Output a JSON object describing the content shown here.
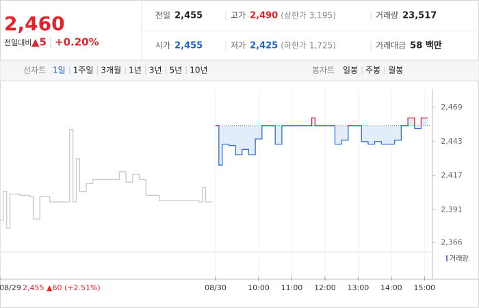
{
  "header": {
    "price": "2,460",
    "change_label": "전일대비",
    "change": "▲5",
    "change_pct": "+0.20%",
    "stats": [
      {
        "label": "전일",
        "value": "2,455",
        "color": "#222"
      },
      {
        "label": "고가",
        "value": "2,490",
        "note": "(상한가 3,195)",
        "color": "#e0242b"
      },
      {
        "label": "거래량",
        "value": "23,517",
        "color": "#222"
      },
      {
        "label": "시가",
        "value": "2,455",
        "color": "#1e62c8"
      },
      {
        "label": "저가",
        "value": "2,425",
        "note": "(하한가 1,725)",
        "color": "#1e62c8"
      },
      {
        "label": "거래대금",
        "value": "58 백만",
        "color": "#222"
      }
    ]
  },
  "tabs": {
    "line_label": "선차트",
    "periods": [
      "1일",
      "1주일",
      "3개월",
      "1년",
      "3년",
      "5년",
      "10년"
    ],
    "active": 0,
    "candle_label": "봉차트",
    "candles": [
      "일봉",
      "주봉",
      "월봉"
    ]
  },
  "chart_data": {
    "type": "line",
    "base": 2455,
    "annotation": "2,455 ▲60 (+2.51%)",
    "volume_label": "거래량",
    "xlim": [
      0,
      130
    ],
    "ylim": [
      2360,
      2482
    ],
    "xticks": [
      {
        "value": 0,
        "label": "08/29"
      },
      {
        "value": 65,
        "label": "08/30"
      },
      {
        "value": 78,
        "label": "10:00"
      },
      {
        "value": 88,
        "label": "11:00"
      },
      {
        "value": 98,
        "label": "12:00"
      },
      {
        "value": 108,
        "label": "13:00"
      },
      {
        "value": 118,
        "label": "14:00"
      },
      {
        "value": 128,
        "label": "15:00"
      }
    ],
    "yticks": [
      {
        "value": 2469,
        "label": "2,469"
      },
      {
        "value": 2443,
        "label": "2,443"
      },
      {
        "value": 2417,
        "label": "2,417"
      },
      {
        "value": 2391,
        "label": "2,391"
      },
      {
        "value": 2366,
        "label": "2,366"
      }
    ],
    "series": [
      {
        "color": "#c8c8c8",
        "x": [
          0,
          1,
          2,
          3,
          6,
          9,
          10,
          11,
          12,
          15,
          18,
          20,
          21,
          22,
          23,
          24,
          26,
          28,
          30,
          33,
          35,
          36,
          38,
          40,
          42,
          44,
          46,
          48,
          52,
          56,
          60,
          61,
          62,
          64
        ],
        "values": [
          2383,
          2405,
          2377,
          2403,
          2402,
          2401,
          2384,
          2384,
          2401,
          2397,
          2397,
          2397,
          2452,
          2397,
          2430,
          2405,
          2411,
          2414,
          2414,
          2414,
          2414,
          2420,
          2412,
          2418,
          2414,
          2402,
          2402,
          2398,
          2398,
          2398,
          2397,
          2408,
          2397,
          2397
        ]
      },
      {
        "color": "#2f6fd0",
        "up_color": "#e0242b",
        "x": [
          65,
          66,
          67,
          69,
          71,
          73,
          75,
          77,
          79,
          81,
          83,
          85,
          87,
          89,
          91,
          93,
          94,
          95,
          97,
          99,
          101,
          103,
          105,
          107,
          109,
          111,
          113,
          115,
          117,
          119,
          121,
          123,
          125,
          127,
          129
        ],
        "values": [
          2455,
          2425,
          2441,
          2440,
          2433,
          2437,
          2433,
          2445,
          2455,
          2455,
          2441,
          2455,
          2455,
          2455,
          2455,
          2455,
          2461,
          2455,
          2455,
          2455,
          2441,
          2444,
          2455,
          2455,
          2443,
          2441,
          2443,
          2441,
          2441,
          2444,
          2455,
          2461,
          2453,
          2461,
          2461
        ]
      }
    ]
  }
}
